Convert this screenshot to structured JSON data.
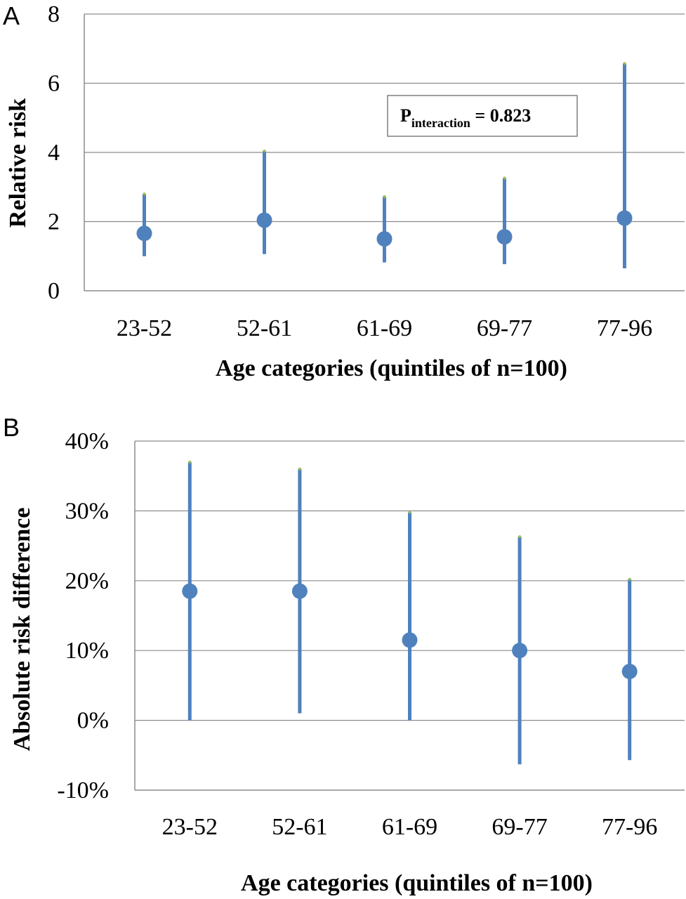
{
  "chart_data": [
    {
      "panel": "A",
      "type": "scatter",
      "title": "",
      "xlabel": "Age categories (quintiles of n=100)",
      "ylabel": "Relative risk",
      "categories": [
        "23-52",
        "52-61",
        "61-69",
        "69-77",
        "77-96"
      ],
      "values": [
        1.66,
        2.04,
        1.5,
        1.56,
        2.1
      ],
      "ci_lower": [
        1.0,
        1.06,
        0.82,
        0.77,
        0.65
      ],
      "ci_upper": [
        2.8,
        4.04,
        2.72,
        3.26,
        6.57
      ],
      "ylim": [
        0,
        8
      ],
      "yticks": [
        0,
        2,
        4,
        6,
        8
      ],
      "ytick_labels": [
        "0",
        "2",
        "4",
        "6",
        "8"
      ],
      "grid": true,
      "annotation": {
        "main": "P",
        "subscript": "interaction",
        "value": " = 0.823"
      }
    },
    {
      "panel": "B",
      "type": "scatter",
      "title": "",
      "xlabel": "Age categories (quintiles of n=100)",
      "ylabel": "Absolute risk difference",
      "categories": [
        "23-52",
        "52-61",
        "61-69",
        "69-77",
        "77-96"
      ],
      "values": [
        18.5,
        18.5,
        11.5,
        10.0,
        7.0
      ],
      "ci_lower": [
        0.0,
        1.0,
        0.0,
        -6.3,
        -5.7
      ],
      "ci_upper": [
        37.0,
        36.0,
        29.8,
        26.3,
        20.2
      ],
      "ylim": [
        -10,
        40
      ],
      "yticks": [
        -10,
        0,
        10,
        20,
        30,
        40
      ],
      "ytick_labels": [
        "-10%",
        "0%",
        "10%",
        "20%",
        "30%",
        "40%"
      ],
      "grid": true
    }
  ],
  "panel_labels": {
    "a": "A",
    "b": "B"
  },
  "colors": {
    "marker": "#4f81bd",
    "grid": "#8c8c8c",
    "cap": "#9bbb59",
    "text": "#000000"
  }
}
